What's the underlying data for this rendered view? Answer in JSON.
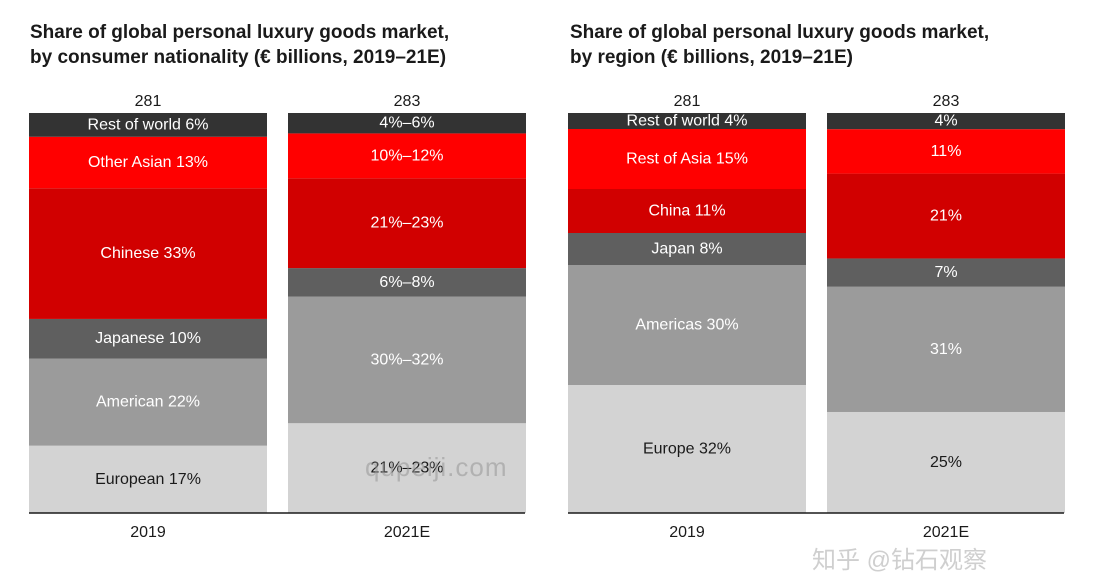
{
  "chart_data": [
    {
      "type": "bar",
      "stacked": true,
      "title": [
        "Share of global personal luxury goods market,",
        "by consumer nationality (€ billions, 2019–21E)"
      ],
      "categories": [
        "2019",
        "2021E"
      ],
      "totals": [
        "281",
        "283"
      ],
      "bars": [
        {
          "category": "2019",
          "segments": [
            {
              "name": "European",
              "value": 17,
              "label": "European 17%",
              "color": "#d3d3d3",
              "text_color": "#1a1a1a"
            },
            {
              "name": "American",
              "value": 22,
              "label": "American 22%",
              "color": "#9b9b9b",
              "text_color": "#ffffff"
            },
            {
              "name": "Japanese",
              "value": 10,
              "label": "Japanese 10%",
              "color": "#5f5f5f",
              "text_color": "#ffffff"
            },
            {
              "name": "Chinese",
              "value": 33,
              "label": "Chinese 33%",
              "color": "#d10000",
              "text_color": "#ffffff"
            },
            {
              "name": "Other Asian",
              "value": 13,
              "label": "Other Asian 13%",
              "color": "#ff0000",
              "text_color": "#ffffff"
            },
            {
              "name": "Rest of world",
              "value": 6,
              "label": "Rest of world 6%",
              "color": "#333333",
              "text_color": "#ffffff"
            }
          ]
        },
        {
          "category": "2021E",
          "segments": [
            {
              "name": "European",
              "value": 22,
              "label": "21%–23%",
              "color": "#d3d3d3",
              "text_color": "#1a1a1a"
            },
            {
              "name": "American",
              "value": 31,
              "label": "30%–32%",
              "color": "#9b9b9b",
              "text_color": "#ffffff"
            },
            {
              "name": "Japanese",
              "value": 7,
              "label": "6%–8%",
              "color": "#5f5f5f",
              "text_color": "#ffffff"
            },
            {
              "name": "Chinese",
              "value": 22,
              "label": "21%–23%",
              "color": "#d10000",
              "text_color": "#ffffff"
            },
            {
              "name": "Other Asian",
              "value": 11,
              "label": "10%–12%",
              "color": "#ff0000",
              "text_color": "#ffffff"
            },
            {
              "name": "Rest of world",
              "value": 5,
              "label": "4%–6%",
              "color": "#333333",
              "text_color": "#ffffff"
            }
          ]
        }
      ],
      "ylim": [
        0,
        100
      ]
    },
    {
      "type": "bar",
      "stacked": true,
      "title": [
        "Share of global personal luxury goods market,",
        "by region (€ billions, 2019–21E)"
      ],
      "categories": [
        "2019",
        "2021E"
      ],
      "totals": [
        "281",
        "283"
      ],
      "bars": [
        {
          "category": "2019",
          "segments": [
            {
              "name": "Europe",
              "value": 32,
              "label": "Europe 32%",
              "color": "#d3d3d3",
              "text_color": "#1a1a1a"
            },
            {
              "name": "Americas",
              "value": 30,
              "label": "Americas 30%",
              "color": "#9b9b9b",
              "text_color": "#ffffff"
            },
            {
              "name": "Japan",
              "value": 8,
              "label": "Japan 8%",
              "color": "#5f5f5f",
              "text_color": "#ffffff"
            },
            {
              "name": "China",
              "value": 11,
              "label": "China 11%",
              "color": "#d10000",
              "text_color": "#ffffff"
            },
            {
              "name": "Rest of Asia",
              "value": 15,
              "label": "Rest of Asia 15%",
              "color": "#ff0000",
              "text_color": "#ffffff"
            },
            {
              "name": "Rest of world",
              "value": 4,
              "label": "Rest of world 4%",
              "color": "#333333",
              "text_color": "#ffffff"
            }
          ]
        },
        {
          "category": "2021E",
          "segments": [
            {
              "name": "Europe",
              "value": 25,
              "label": "25%",
              "color": "#d3d3d3",
              "text_color": "#1a1a1a"
            },
            {
              "name": "Americas",
              "value": 31,
              "label": "31%",
              "color": "#9b9b9b",
              "text_color": "#ffffff"
            },
            {
              "name": "Japan",
              "value": 7,
              "label": "7%",
              "color": "#5f5f5f",
              "text_color": "#ffffff"
            },
            {
              "name": "China",
              "value": 21,
              "label": "21%",
              "color": "#d10000",
              "text_color": "#ffffff"
            },
            {
              "name": "Rest of Asia",
              "value": 11,
              "label": "11%",
              "color": "#ff0000",
              "text_color": "#ffffff"
            },
            {
              "name": "Rest of world",
              "value": 4,
              "label": "4%",
              "color": "#333333",
              "text_color": "#ffffff"
            }
          ]
        }
      ],
      "ylim": [
        0,
        100
      ]
    }
  ],
  "watermark_text": "qupeiji.com",
  "source_watermark": "知乎 @钻石观察"
}
